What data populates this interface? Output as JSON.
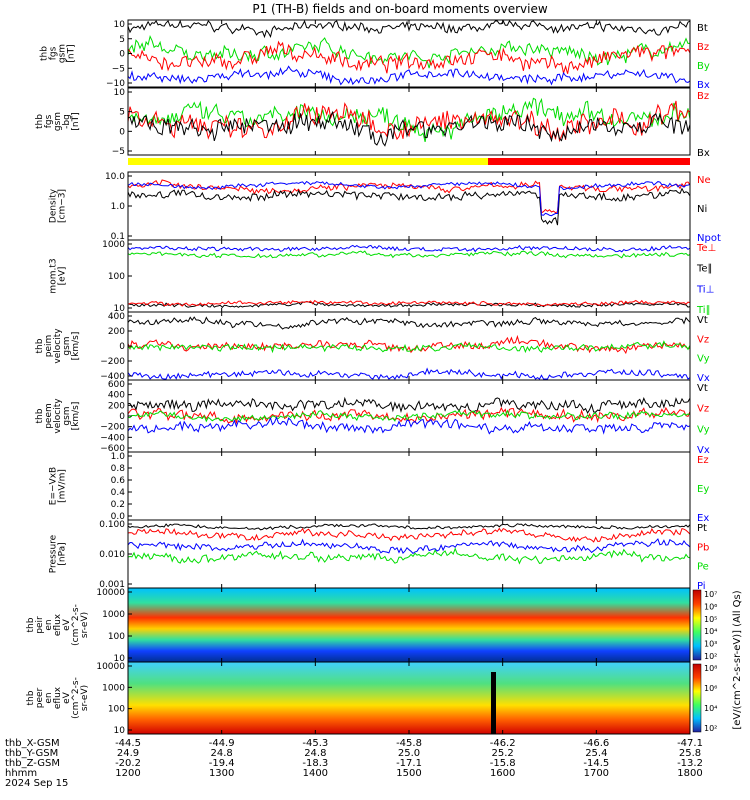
{
  "title": "P1 (TH-B) fields and on-board moments overview",
  "colors": {
    "black": "#000000",
    "red": "#ff0000",
    "green": "#00dd00",
    "blue": "#0000ff",
    "yellow": "#ffff00"
  },
  "chart_data": {
    "type": "line",
    "x_ticks": [
      "1200",
      "1300",
      "1400",
      "1500",
      "1600",
      "1700",
      "1800"
    ],
    "footer": {
      "rows": [
        {
          "label": "thb_X-GSM",
          "values": [
            "-44.5",
            "-44.9",
            "-45.3",
            "-45.8",
            "-46.2",
            "-46.6",
            "-47.1"
          ]
        },
        {
          "label": "thb_Y-GSM",
          "values": [
            "24.9",
            "24.8",
            "24.8",
            "25.0",
            "25.2",
            "25.4",
            "25.8"
          ]
        },
        {
          "label": "thb_Z-GSM",
          "values": [
            "-20.2",
            "-19.4",
            "-18.3",
            "-17.1",
            "-15.8",
            "-14.5",
            "-13.2"
          ]
        },
        {
          "label": "hhmm",
          "values": [
            "1200",
            "1300",
            "1400",
            "1500",
            "1600",
            "1700",
            "1800"
          ]
        }
      ],
      "date": "2024 Sep 15"
    },
    "panels": [
      {
        "id": "fgs",
        "ylabel": [
          "thb",
          "fgs",
          "gsm",
          "[nT]"
        ],
        "ticks": [
          "10",
          "5",
          "0",
          "−5",
          "−10"
        ],
        "legend": [
          {
            "name": "Bt",
            "color": "black"
          },
          {
            "name": "Bz",
            "color": "red"
          },
          {
            "name": "By",
            "color": "green"
          },
          {
            "name": "Bx",
            "color": "blue"
          }
        ]
      },
      {
        "id": "fgs_dsl",
        "ylabel": [
          "thb",
          "fgs",
          "gsm",
          "-bg",
          "[nT]"
        ],
        "ticks": [
          "10",
          "5",
          "0",
          "−5"
        ],
        "legend": [
          {
            "name": "Bz",
            "color": "red"
          },
          {
            "name": "Bx",
            "color": "black"
          }
        ]
      },
      {
        "id": "density",
        "ylabel": [
          "Density",
          "[cm−3]"
        ],
        "ticks": [
          "10.0",
          "1.0",
          "0.1"
        ],
        "log": true,
        "legend": [
          {
            "name": "Ne",
            "color": "red"
          },
          {
            "name": "Ni",
            "color": "black"
          },
          {
            "name": "Npot",
            "color": "blue"
          }
        ]
      },
      {
        "id": "temp",
        "ylabel": [
          "mom.t3",
          "[eV]"
        ],
        "ticks": [
          "1000",
          "100",
          "10"
        ],
        "log": true,
        "legend": [
          {
            "name": "Te⊥",
            "color": "red"
          },
          {
            "name": "Te∥",
            "color": "black"
          },
          {
            "name": "Ti⊥",
            "color": "blue"
          },
          {
            "name": "Ti∥",
            "color": "green"
          }
        ]
      },
      {
        "id": "vi",
        "ylabel": [
          "thb",
          "peim",
          "velocity",
          "gsm",
          "[km/s]"
        ],
        "ticks": [
          "400",
          "200",
          "0",
          "−200",
          "−400"
        ],
        "legend": [
          {
            "name": "Vt",
            "color": "black"
          },
          {
            "name": "Vz",
            "color": "red"
          },
          {
            "name": "Vy",
            "color": "green"
          },
          {
            "name": "Vx",
            "color": "blue"
          }
        ]
      },
      {
        "id": "ve",
        "ylabel": [
          "thb",
          "peem",
          "velocity",
          "gsm",
          "[km/s]"
        ],
        "ticks": [
          "600",
          "400",
          "200",
          "0",
          "−200",
          "−400",
          "−600"
        ],
        "legend": [
          {
            "name": "Vt",
            "color": "black"
          },
          {
            "name": "Vz",
            "color": "red"
          },
          {
            "name": "Vy",
            "color": "green"
          },
          {
            "name": "Vx",
            "color": "blue"
          }
        ]
      },
      {
        "id": "efield",
        "ylabel": [
          "E=−VxB",
          "[mV/m]"
        ],
        "ticks": [
          "1.0",
          "0.8",
          "0.6",
          "0.4",
          "0.2",
          "0.0"
        ],
        "legend": [
          {
            "name": "Ez",
            "color": "red"
          },
          {
            "name": "Ey",
            "color": "green"
          },
          {
            "name": "Ex",
            "color": "blue"
          }
        ]
      },
      {
        "id": "pressure",
        "ylabel": [
          "Pressure",
          "[nPa]"
        ],
        "ticks": [
          "0.100",
          "0.010",
          "0.001"
        ],
        "log": true,
        "legend": [
          {
            "name": "Pt",
            "color": "black"
          },
          {
            "name": "Pb",
            "color": "red"
          },
          {
            "name": "Pe",
            "color": "green"
          },
          {
            "name": "Pi",
            "color": "blue"
          }
        ]
      },
      {
        "id": "ion_spec",
        "ylabel": [
          "thb",
          "peir",
          "en",
          "eflux",
          "eV",
          "(cm^2-s-",
          "sr-eV)"
        ],
        "ticks": [
          "10000",
          "1000",
          "100",
          "10"
        ],
        "colorbar": [
          "10⁷",
          "10⁶",
          "10⁵",
          "10⁴",
          "10³",
          "10²"
        ]
      },
      {
        "id": "el_spec",
        "ylabel": [
          "thb",
          "peer",
          "en",
          "eflux",
          "eV",
          "(cm^2-s-",
          "sr-eV)"
        ],
        "ticks": [
          "10000",
          "1000",
          "100",
          "10"
        ],
        "colorbar": [
          "10⁸",
          "10⁶",
          "10⁴",
          "10²"
        ]
      }
    ],
    "colorbar_label": "[eV/(cm^2-s-sr-eV)] (All Qs)"
  }
}
